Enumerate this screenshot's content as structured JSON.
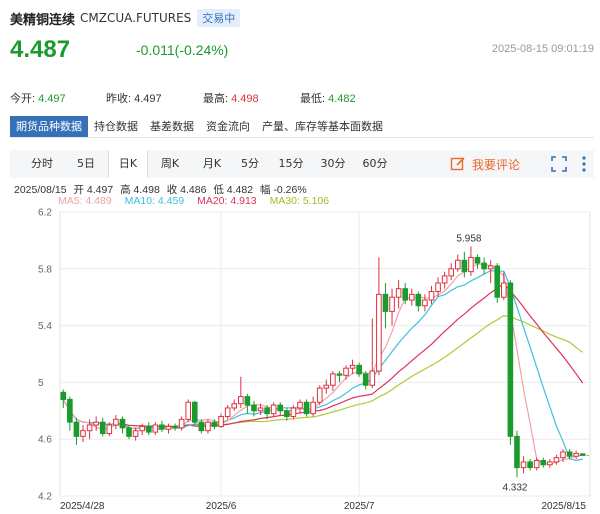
{
  "header": {
    "name": "美精铜连续",
    "code": "CMZCUA.FUTURES",
    "trading_status": "交易中",
    "last_price": "4.487",
    "change": "-0.011(-0.24%)",
    "timestamp": "2025-08-15 09:01:19"
  },
  "stats": {
    "open_label": "今开:",
    "open_value": "4.497",
    "prev_close_label": "昨收:",
    "prev_close_value": "4.497",
    "high_label": "最高:",
    "high_value": "4.498",
    "low_label": "最低:",
    "low_value": "4.482"
  },
  "tabs": [
    {
      "label": "期货品种数据",
      "active": true
    },
    {
      "label": "持仓数据",
      "active": false
    },
    {
      "label": "基差数据",
      "active": false
    },
    {
      "label": "资金流向",
      "active": false
    },
    {
      "label": "产量、库存等基本面数据",
      "active": false
    }
  ],
  "periods": [
    {
      "label": "分时",
      "active": false
    },
    {
      "label": "5日",
      "active": false
    },
    {
      "label": "日K",
      "active": true
    },
    {
      "label": "周K",
      "active": false
    },
    {
      "label": "月K",
      "active": false
    },
    {
      "label": "5分",
      "active": false
    },
    {
      "label": "15分",
      "active": false
    },
    {
      "label": "30分",
      "active": false
    },
    {
      "label": "60分",
      "active": false
    }
  ],
  "comment_button": "我要评论",
  "ohlc": {
    "date": "2025/08/15",
    "open": "开 4.497",
    "high": "高 4.498",
    "close": "收 4.486",
    "low": "低 4.482",
    "amplitude": "幅 -0.26%"
  },
  "ma_legend": {
    "ma5": "MA5: 4.489",
    "ma10": "MA10: 4.459",
    "ma20": "MA20: 4.913",
    "ma30": "MA30: 5.106"
  },
  "colors": {
    "up": "#e0313c",
    "down": "#1a9b2e",
    "ma5": "#f0a0a8",
    "ma10": "#3fbfe0",
    "ma20": "#e0315a",
    "ma30": "#b4c832",
    "accent": "#3571b8"
  },
  "chart_data": {
    "type": "candlestick",
    "ylim": [
      4.2,
      6.2
    ],
    "yticks": [
      "6.2",
      "5.8",
      "5.4",
      "5",
      "4.6",
      "4.2"
    ],
    "xtick_labels": [
      {
        "label": "2025/4/28",
        "index": 0
      },
      {
        "label": "2025/6",
        "index": 24
      },
      {
        "label": "2025/7",
        "index": 45
      },
      {
        "label": "2025/8/15",
        "index": 79
      }
    ],
    "annotations": [
      {
        "text": "5.958",
        "index": 62,
        "value": 5.958
      },
      {
        "text": "4.332",
        "index": 69,
        "value": 4.332
      }
    ],
    "candles": [
      [
        4.93,
        4.88,
        4.95,
        4.82
      ],
      [
        4.88,
        4.72,
        4.9,
        4.66
      ],
      [
        4.72,
        4.62,
        4.75,
        4.56
      ],
      [
        4.62,
        4.66,
        4.7,
        4.58
      ],
      [
        4.66,
        4.7,
        4.74,
        4.6
      ],
      [
        4.7,
        4.72,
        4.76,
        4.66
      ],
      [
        4.72,
        4.64,
        4.75,
        4.62
      ],
      [
        4.64,
        4.7,
        4.72,
        4.62
      ],
      [
        4.7,
        4.74,
        4.77,
        4.67
      ],
      [
        4.74,
        4.68,
        4.76,
        4.64
      ],
      [
        4.68,
        4.62,
        4.7,
        4.6
      ],
      [
        4.62,
        4.66,
        4.68,
        4.59
      ],
      [
        4.66,
        4.69,
        4.71,
        4.63
      ],
      [
        4.69,
        4.65,
        4.72,
        4.63
      ],
      [
        4.65,
        4.7,
        4.72,
        4.63
      ],
      [
        4.7,
        4.67,
        4.73,
        4.65
      ],
      [
        4.67,
        4.69,
        4.71,
        4.64
      ],
      [
        4.69,
        4.68,
        4.71,
        4.66
      ],
      [
        4.68,
        4.74,
        4.76,
        4.66
      ],
      [
        4.74,
        4.86,
        4.88,
        4.72
      ],
      [
        4.86,
        4.72,
        4.87,
        4.7
      ],
      [
        4.72,
        4.66,
        4.74,
        4.64
      ],
      [
        4.66,
        4.72,
        4.74,
        4.64
      ],
      [
        4.72,
        4.69,
        4.74,
        4.67
      ],
      [
        4.69,
        4.76,
        4.78,
        4.68
      ],
      [
        4.76,
        4.82,
        4.84,
        4.74
      ],
      [
        4.82,
        4.85,
        4.88,
        4.8
      ],
      [
        4.85,
        4.9,
        5.04,
        4.82
      ],
      [
        4.9,
        4.84,
        4.92,
        4.78
      ],
      [
        4.84,
        4.8,
        4.87,
        4.76
      ],
      [
        4.8,
        4.82,
        4.85,
        4.77
      ],
      [
        4.82,
        4.78,
        4.84,
        4.74
      ],
      [
        4.78,
        4.84,
        4.86,
        4.76
      ],
      [
        4.84,
        4.8,
        4.86,
        4.77
      ],
      [
        4.8,
        4.76,
        4.82,
        4.73
      ],
      [
        4.76,
        4.82,
        4.84,
        4.74
      ],
      [
        4.82,
        4.86,
        4.88,
        4.78
      ],
      [
        4.86,
        4.78,
        4.88,
        4.76
      ],
      [
        4.78,
        4.86,
        4.9,
        4.76
      ],
      [
        4.86,
        4.96,
        4.98,
        4.84
      ],
      [
        4.96,
        4.98,
        5.02,
        4.92
      ],
      [
        4.98,
        5.06,
        5.08,
        4.94
      ],
      [
        5.06,
        5.05,
        5.08,
        5.0
      ],
      [
        5.05,
        5.1,
        5.12,
        5.02
      ],
      [
        5.1,
        5.12,
        5.16,
        5.06
      ],
      [
        5.12,
        5.06,
        5.14,
        5.04
      ],
      [
        5.06,
        4.98,
        5.08,
        4.95
      ],
      [
        4.98,
        5.08,
        5.45,
        4.96
      ],
      [
        5.08,
        5.62,
        5.88,
        5.05
      ],
      [
        5.62,
        5.5,
        5.7,
        5.38
      ],
      [
        5.5,
        5.6,
        5.66,
        5.4
      ],
      [
        5.6,
        5.66,
        5.72,
        5.52
      ],
      [
        5.66,
        5.58,
        5.7,
        5.55
      ],
      [
        5.58,
        5.62,
        5.66,
        5.54
      ],
      [
        5.62,
        5.54,
        5.64,
        5.5
      ],
      [
        5.54,
        5.58,
        5.62,
        5.5
      ],
      [
        5.58,
        5.64,
        5.68,
        5.55
      ],
      [
        5.64,
        5.7,
        5.74,
        5.6
      ],
      [
        5.7,
        5.75,
        5.78,
        5.66
      ],
      [
        5.75,
        5.8,
        5.84,
        5.72
      ],
      [
        5.8,
        5.86,
        5.9,
        5.78
      ],
      [
        5.86,
        5.78,
        5.92,
        5.74
      ],
      [
        5.78,
        5.88,
        5.958,
        5.75
      ],
      [
        5.88,
        5.84,
        5.9,
        5.8
      ],
      [
        5.84,
        5.8,
        5.88,
        5.76
      ],
      [
        5.8,
        5.82,
        5.86,
        5.7
      ],
      [
        5.82,
        5.6,
        5.84,
        5.56
      ],
      [
        5.6,
        5.7,
        5.78,
        5.58
      ],
      [
        5.7,
        4.62,
        5.72,
        4.56
      ],
      [
        4.62,
        4.4,
        4.66,
        4.332
      ],
      [
        4.4,
        4.44,
        4.48,
        4.36
      ],
      [
        4.44,
        4.4,
        4.46,
        4.38
      ],
      [
        4.4,
        4.45,
        4.47,
        4.38
      ],
      [
        4.45,
        4.42,
        4.47,
        4.4
      ],
      [
        4.42,
        4.44,
        4.46,
        4.4
      ],
      [
        4.44,
        4.47,
        4.49,
        4.42
      ],
      [
        4.47,
        4.51,
        4.53,
        4.44
      ],
      [
        4.51,
        4.48,
        4.53,
        4.46
      ],
      [
        4.48,
        4.5,
        4.52,
        4.46
      ],
      [
        4.497,
        4.486,
        4.498,
        4.482
      ]
    ]
  }
}
